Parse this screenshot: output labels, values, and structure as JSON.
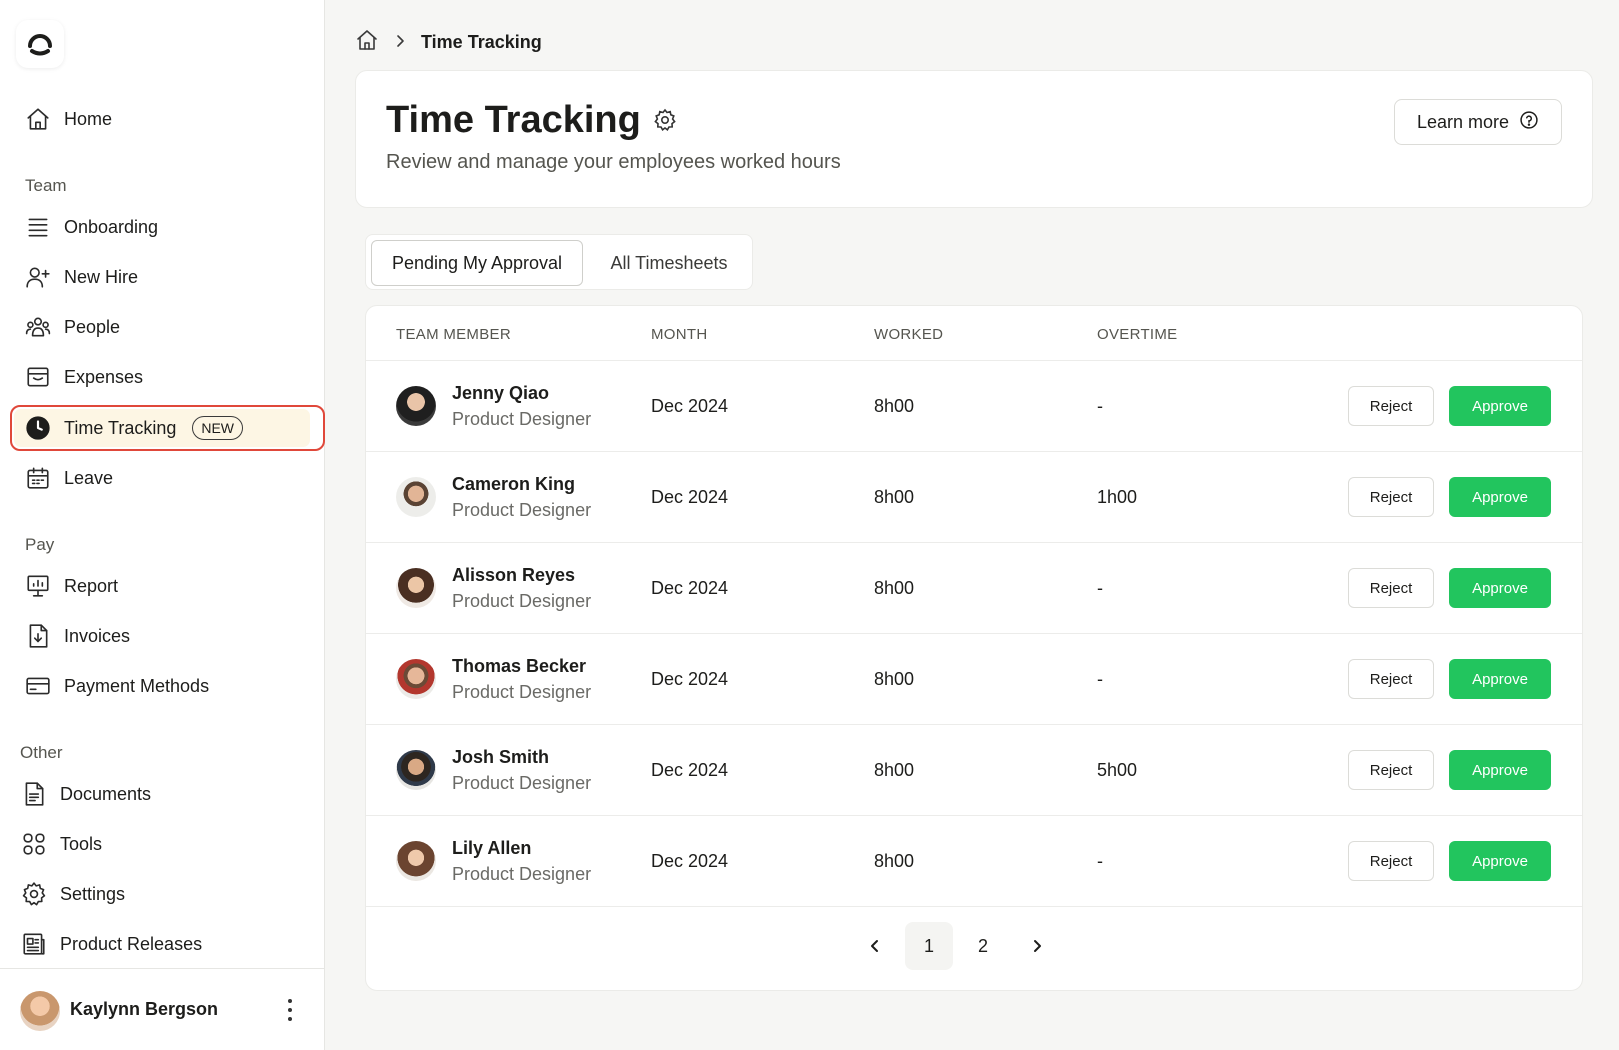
{
  "app": {
    "logo_icon": "brand-logo-icon",
    "accent_color": "#22c55e",
    "highlight_color": "#e0483a"
  },
  "sidebar": {
    "home": {
      "label": "Home",
      "icon": "home-icon"
    },
    "sections": [
      {
        "label": "Team",
        "items": [
          {
            "label": "Onboarding",
            "icon": "list-icon"
          },
          {
            "label": "New Hire",
            "icon": "user-plus-icon"
          },
          {
            "label": "People",
            "icon": "users-icon"
          },
          {
            "label": "Expenses",
            "icon": "expenses-icon"
          },
          {
            "label": "Time Tracking",
            "icon": "clock-icon",
            "badge": "NEW",
            "active": true
          },
          {
            "label": "Leave",
            "icon": "calendar-icon"
          }
        ]
      },
      {
        "label": "Pay",
        "items": [
          {
            "label": "Report",
            "icon": "report-icon"
          },
          {
            "label": "Invoices",
            "icon": "invoice-icon"
          },
          {
            "label": "Payment Methods",
            "icon": "credit-card-icon"
          }
        ]
      },
      {
        "label": "Other",
        "items": [
          {
            "label": "Documents",
            "icon": "document-icon"
          },
          {
            "label": "Tools",
            "icon": "grid-icon"
          },
          {
            "label": "Settings",
            "icon": "gear-icon"
          },
          {
            "label": "Product Releases",
            "icon": "newspaper-icon"
          }
        ]
      }
    ],
    "user": {
      "name": "Kaylynn Bergson"
    }
  },
  "breadcrumb": {
    "current": "Time Tracking"
  },
  "header": {
    "title": "Time Tracking",
    "subtitle": "Review and manage your employees worked hours",
    "learn_more": "Learn more"
  },
  "tabs": [
    {
      "label": "Pending My Approval",
      "active": true
    },
    {
      "label": "All Timesheets",
      "active": false
    }
  ],
  "table": {
    "columns": [
      "TEAM MEMBER",
      "MONTH",
      "WORKED",
      "OVERTIME"
    ],
    "reject_label": "Reject",
    "approve_label": "Approve",
    "rows": [
      {
        "name": "Jenny Qiao",
        "role": "Product Designer",
        "month": "Dec 2024",
        "worked": "8h00",
        "overtime": "-"
      },
      {
        "name": "Cameron King",
        "role": "Product Designer",
        "month": "Dec 2024",
        "worked": "8h00",
        "overtime": "1h00"
      },
      {
        "name": "Alisson Reyes",
        "role": "Product Designer",
        "month": "Dec 2024",
        "worked": "8h00",
        "overtime": "-"
      },
      {
        "name": "Thomas Becker",
        "role": "Product Designer",
        "month": "Dec 2024",
        "worked": "8h00",
        "overtime": "-"
      },
      {
        "name": "Josh Smith",
        "role": "Product Designer",
        "month": "Dec 2024",
        "worked": "8h00",
        "overtime": "5h00"
      },
      {
        "name": "Lily Allen",
        "role": "Product Designer",
        "month": "Dec 2024",
        "worked": "8h00",
        "overtime": "-"
      }
    ]
  },
  "pagination": {
    "pages": [
      "1",
      "2"
    ],
    "current": "1"
  }
}
